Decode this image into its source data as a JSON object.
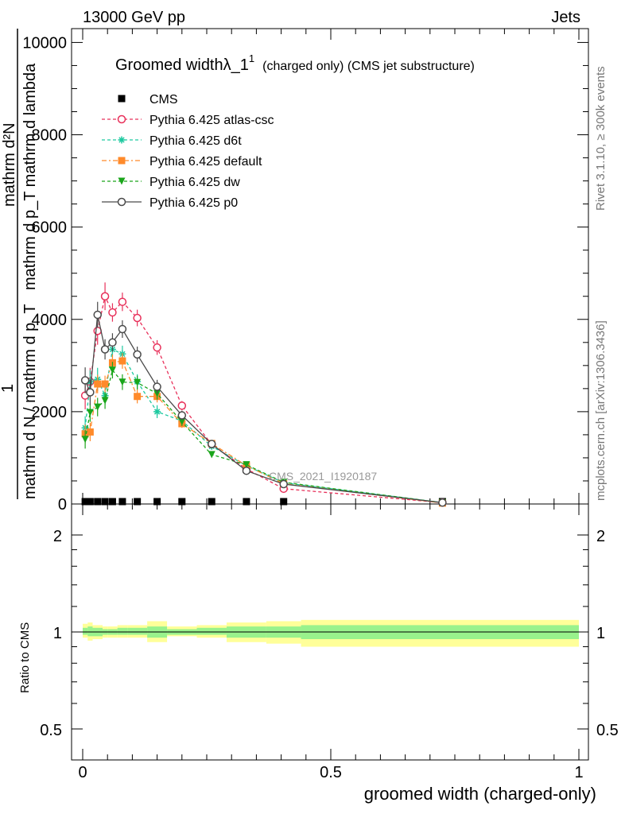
{
  "header": {
    "left": "13000 GeV pp",
    "right": "Jets"
  },
  "side": {
    "rivet": "Rivet 3.1.10, ≥ 300k events",
    "mcplots": "mcplots.cern.ch [arXiv:1306.3436]"
  },
  "title": {
    "main": "Groomed widthλ_1",
    "sup": "1",
    "sub": "(charged only) (CMS jet substructure)"
  },
  "watermark": "CMS_2021_I1920187",
  "chart_data": [
    {
      "type": "line",
      "panel": "main",
      "ylabel_top": "mathrm d²N",
      "ylabel_mid": "mathrm d p_T mathrm d lambda",
      "ylabel_frac_num": "1",
      "ylabel_bottom": "mathrm d N / mathrm d p_T",
      "ylim": [
        0,
        10300
      ],
      "xlim": [
        -0.025,
        1.0
      ],
      "y_ticks": [
        0,
        2000,
        4000,
        6000,
        8000,
        10000
      ],
      "y_tick_labels": [
        "0",
        "2000",
        "4000",
        "6000",
        "8000",
        "10000"
      ],
      "x": [
        0.005,
        0.015,
        0.03,
        0.045,
        0.06,
        0.08,
        0.11,
        0.15,
        0.2,
        0.26,
        0.33,
        0.405,
        0.725
      ],
      "series": [
        {
          "name": "CMS",
          "color": "#000000",
          "marker": "square",
          "dash": "none",
          "values": [
            10,
            10,
            10,
            10,
            10,
            10,
            10,
            10,
            10,
            10,
            10,
            10,
            10
          ],
          "errors": [
            0,
            0,
            0,
            0,
            0,
            0,
            0,
            0,
            0,
            0,
            0,
            0,
            0
          ]
        },
        {
          "name": "Pythia 6.425 atlas-csc",
          "color": "#e8305a",
          "marker": "open-circle",
          "dash": "4,3",
          "values": [
            2350,
            2650,
            3750,
            4500,
            4150,
            4380,
            4030,
            3390,
            2130,
            1290,
            760,
            330,
            30
          ],
          "errors": [
            300,
            300,
            300,
            300,
            200,
            200,
            180,
            160,
            100,
            60,
            50,
            30,
            10
          ]
        },
        {
          "name": "Pythia 6.425 d6t",
          "color": "#1ec9a0",
          "marker": "star",
          "dash": "4,3",
          "values": [
            1650,
            2650,
            2700,
            2350,
            3350,
            3250,
            2650,
            2000,
            1800,
            1250,
            830,
            460,
            30
          ],
          "errors": [
            250,
            250,
            250,
            200,
            200,
            180,
            160,
            140,
            90,
            60,
            50,
            30,
            10
          ]
        },
        {
          "name": "Pythia 6.425 default",
          "color": "#ff8a2a",
          "marker": "square",
          "dash": "6,3,2,3",
          "values": [
            1520,
            1560,
            2600,
            2600,
            3060,
            3100,
            2330,
            2330,
            1740,
            1310,
            830,
            440,
            20
          ],
          "errors": [
            200,
            200,
            200,
            180,
            180,
            170,
            150,
            130,
            90,
            60,
            50,
            30,
            10
          ]
        },
        {
          "name": "Pythia 6.425 dw",
          "color": "#1aa51a",
          "marker": "down-triangle",
          "dash": "4,3",
          "values": [
            1400,
            1980,
            2100,
            2240,
            2900,
            2640,
            2630,
            2390,
            1780,
            1070,
            850,
            470,
            30
          ],
          "errors": [
            200,
            200,
            200,
            180,
            180,
            170,
            150,
            130,
            90,
            60,
            50,
            30,
            10
          ]
        },
        {
          "name": "Pythia 6.425 p0",
          "color": "#4a4a4a",
          "marker": "open-circle",
          "dash": "none",
          "values": [
            2680,
            2420,
            4100,
            3350,
            3500,
            3790,
            3240,
            2540,
            1920,
            1300,
            720,
            430,
            30
          ],
          "errors": [
            280,
            280,
            280,
            220,
            200,
            190,
            170,
            150,
            100,
            60,
            50,
            30,
            10
          ]
        }
      ]
    },
    {
      "type": "area",
      "panel": "ratio",
      "ylabel": "Ratio to CMS",
      "ylim": [
        0.4,
        2.4
      ],
      "y_ticks": [
        0.5,
        1,
        2
      ],
      "y_tick_labels": [
        "0.5",
        "1",
        "2"
      ],
      "xlim": [
        -0.025,
        1.0
      ],
      "xlabel": "groomed width (charged-only)",
      "x_ticks": [
        0,
        0.5,
        1
      ],
      "x_tick_labels": [
        "0",
        "0.5",
        "1"
      ],
      "bins": [
        0,
        0.01,
        0.02,
        0.04,
        0.05,
        0.07,
        0.09,
        0.13,
        0.17,
        0.23,
        0.29,
        0.37,
        0.44,
        1.0
      ],
      "band_outer_lo": [
        0.96,
        0.94,
        0.95,
        0.96,
        0.96,
        0.96,
        0.96,
        0.93,
        0.97,
        0.96,
        0.93,
        0.92,
        0.9
      ],
      "band_outer_hi": [
        1.06,
        1.07,
        1.05,
        1.04,
        1.04,
        1.05,
        1.05,
        1.08,
        1.04,
        1.05,
        1.07,
        1.08,
        1.09
      ],
      "band_inner_lo": [
        0.98,
        0.97,
        0.97,
        0.98,
        0.98,
        0.98,
        0.98,
        0.96,
        0.98,
        0.98,
        0.96,
        0.96,
        0.95
      ],
      "band_inner_hi": [
        1.03,
        1.04,
        1.03,
        1.02,
        1.02,
        1.03,
        1.03,
        1.04,
        1.02,
        1.03,
        1.04,
        1.04,
        1.05
      ],
      "colors": {
        "outer": "#ffff99",
        "inner": "#99f28c",
        "line": "#000000"
      }
    }
  ]
}
